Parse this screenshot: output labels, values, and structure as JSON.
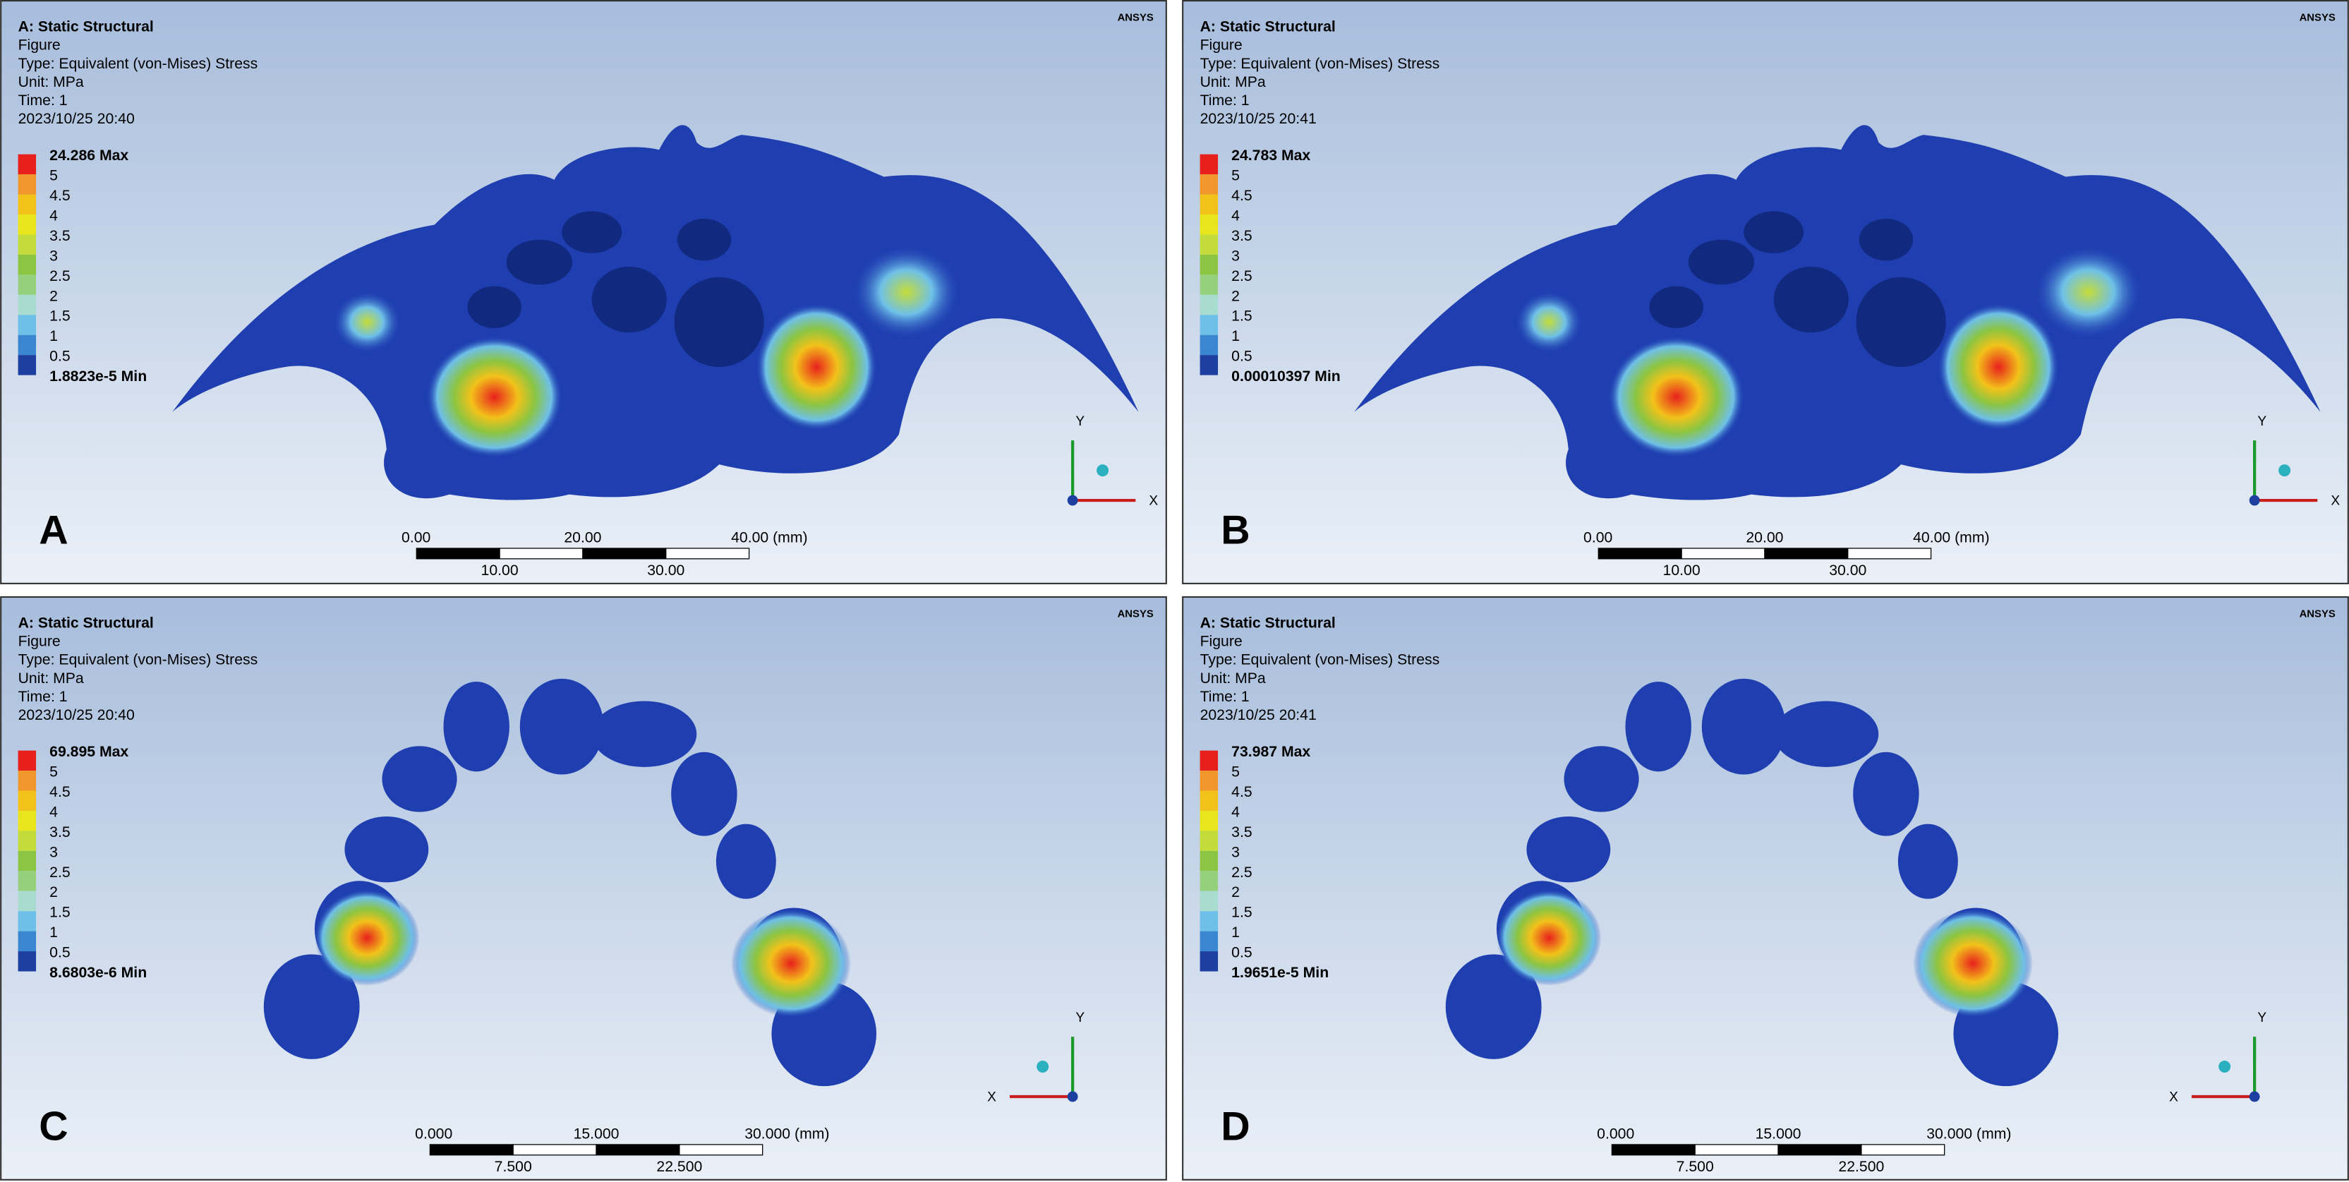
{
  "panels": [
    {
      "label": "A",
      "header": [
        "A: Static Structural",
        "Figure",
        "Type: Equivalent (von-Mises) Stress",
        "Unit: MPa",
        "Time: 1",
        "2023/10/25 20:40"
      ],
      "brand": "ANSYS",
      "legend": [
        "24.286 Max",
        "5",
        "4.5",
        "4",
        "3.5",
        "3",
        "2.5",
        "2",
        "1.5",
        "1",
        "0.5",
        "1.8823e-5 Min"
      ],
      "scale_top": [
        "0.00",
        "20.00",
        "40.00 (mm)"
      ],
      "scale_bottom": [
        "10.00",
        "30.00"
      ],
      "axes": [
        "Y",
        "X"
      ]
    },
    {
      "label": "B",
      "header": [
        "A: Static Structural",
        "Figure",
        "Type: Equivalent (von-Mises) Stress",
        "Unit: MPa",
        "Time: 1",
        "2023/10/25 20:41"
      ],
      "brand": "ANSYS",
      "legend": [
        "24.783 Max",
        "5",
        "4.5",
        "4",
        "3.5",
        "3",
        "2.5",
        "2",
        "1.5",
        "1",
        "0.5",
        "0.00010397 Min"
      ],
      "scale_top": [
        "0.00",
        "20.00",
        "40.00 (mm)"
      ],
      "scale_bottom": [
        "10.00",
        "30.00"
      ],
      "axes": [
        "Y",
        "X"
      ]
    },
    {
      "label": "C",
      "header": [
        "A: Static Structural",
        "Figure",
        "Type: Equivalent (von-Mises) Stress",
        "Unit: MPa",
        "Time: 1",
        "2023/10/25 20:40"
      ],
      "brand": "ANSYS",
      "legend": [
        "69.895 Max",
        "5",
        "4.5",
        "4",
        "3.5",
        "3",
        "2.5",
        "2",
        "1.5",
        "1",
        "0.5",
        "8.6803e-6 Min"
      ],
      "scale_top": [
        "0.000",
        "15.000",
        "30.000 (mm)"
      ],
      "scale_bottom": [
        "7.500",
        "22.500"
      ],
      "axes": [
        "Y",
        "X"
      ]
    },
    {
      "label": "D",
      "header": [
        "A: Static Structural",
        "Figure",
        "Type: Equivalent (von-Mises) Stress",
        "Unit: MPa",
        "Time: 1",
        "2023/10/25 20:41"
      ],
      "brand": "ANSYS",
      "legend": [
        "73.987 Max",
        "5",
        "4.5",
        "4",
        "3.5",
        "3",
        "2.5",
        "2",
        "1.5",
        "1",
        "0.5",
        "1.9651e-5 Min"
      ],
      "scale_top": [
        "0.000",
        "15.000",
        "30.000 (mm)"
      ],
      "scale_bottom": [
        "7.500",
        "22.500"
      ],
      "axes": [
        "Y",
        "X"
      ]
    }
  ]
}
